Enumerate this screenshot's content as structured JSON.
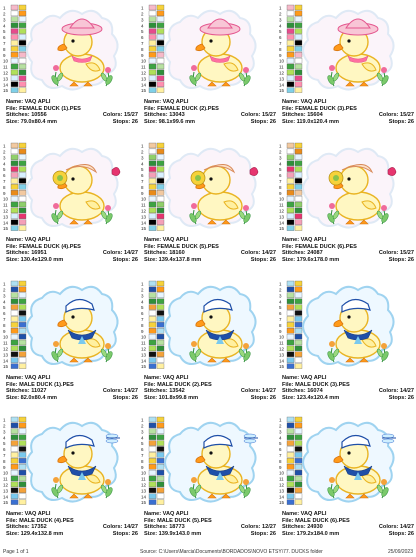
{
  "designs": [
    {
      "name": "VAQ APLI",
      "file": "FEMALE DUCK (1).PES",
      "stitches": "10556",
      "colors": "15/27",
      "size": "79.0x80.4 mm",
      "stops": "26",
      "kind": "female-hat"
    },
    {
      "name": "VAQ APLI",
      "file": "FEMALE DUCK (2).PES",
      "stitches": "13043",
      "colors": "15/27",
      "size": "98.1x99.6 mm",
      "stops": "26",
      "kind": "female-hat"
    },
    {
      "name": "VAQ APLI",
      "file": "FEMALE DUCK (3).PES",
      "stitches": "15604",
      "colors": "15/27",
      "size": "119.0x120.4 mm",
      "stops": "26",
      "kind": "female-hat"
    },
    {
      "name": "VAQ APLI",
      "file": "FEMALE DUCK (4).PES",
      "stitches": "16951",
      "colors": "14/27",
      "size": "130.4x129.0 mm",
      "stops": "26",
      "kind": "female-flower"
    },
    {
      "name": "VAQ APLI",
      "file": "FEMALE DUCK (5).PES",
      "stitches": "18160",
      "colors": "14/27",
      "size": "139.4x137.8 mm",
      "stops": "26",
      "kind": "female-flower"
    },
    {
      "name": "VAQ APLI",
      "file": "FEMALE DUCK (6).PES",
      "stitches": "24087",
      "colors": "15/27",
      "size": "179.6x178.0 mm",
      "stops": "26",
      "kind": "female-flower"
    },
    {
      "name": "VAQ APLI",
      "file": "MALE DUCK (1).PES",
      "stitches": "11027",
      "colors": "14/27",
      "size": "82.0x80.4 mm",
      "stops": "26",
      "kind": "male-sailor"
    },
    {
      "name": "VAQ APLI",
      "file": "MALE DUCK (2).PES",
      "stitches": "13542",
      "colors": "14/27",
      "size": "101.8x99.8 mm",
      "stops": "26",
      "kind": "male-sailor"
    },
    {
      "name": "VAQ APLI",
      "file": "MALE DUCK (3).PES",
      "stitches": "16074",
      "colors": "14/27",
      "size": "123.4x120.4 mm",
      "stops": "26",
      "kind": "male-sailor"
    },
    {
      "name": "VAQ APLI",
      "file": "MALE DUCK (4).PES",
      "stitches": "17352",
      "colors": "14/27",
      "size": "129.4x132.8 mm",
      "stops": "26",
      "kind": "male-dragonfly"
    },
    {
      "name": "VAQ APLI",
      "file": "MALE DUCK (5).PES",
      "stitches": "18773",
      "colors": "12/27",
      "size": "139.9x143.0 mm",
      "stops": "26",
      "kind": "male-dragonfly"
    },
    {
      "name": "VAQ APLI",
      "file": "MALE DUCK (6).PES",
      "stitches": "24930",
      "colors": "14/27",
      "size": "179.2x184.0 mm",
      "stops": "26",
      "kind": "male-dragonfly"
    }
  ],
  "labels": {
    "name": "Name:",
    "file": "File:",
    "stitches": "Stitches:",
    "colors": "Colors:",
    "size": "Size:",
    "stops": "Stops:"
  },
  "footer": {
    "page": "Page 1 of 1",
    "source": "Source: C:\\Users\\Marcia\\Documents\\BORDADOS\\NOVO ETSY\\77. DUCKS folder",
    "date": "25/09/2023"
  },
  "thread_numbers": [
    "1",
    "2",
    "3",
    "4",
    "5",
    "6",
    "7",
    "8",
    "9",
    "10",
    "11",
    "12",
    "13",
    "14",
    "15"
  ],
  "palette": {
    "female_hat": [
      "#f6b9c9",
      "#ffffff",
      "#b7e1a1",
      "#2f8f3a",
      "#e64b8c",
      "#ff8fb0",
      "#fff0a0",
      "#f6d23a",
      "#ff9a1a",
      "#e7f5ff",
      "#3da342",
      "#b0e05a",
      "#d8f0ff",
      "#000000",
      "#7fd0e8"
    ],
    "female_flower": [
      "#f2c9a0",
      "#ffffff",
      "#8fcf6a",
      "#2f8f3a",
      "#e6356f",
      "#f4a0b8",
      "#fff0a0",
      "#f6d23a",
      "#e98b1a",
      "#e7f5ff",
      "#3da342",
      "#b0e05a",
      "#d8f0ff",
      "#000000",
      "#7fd0e8"
    ],
    "male": [
      "#aee0f2",
      "#1f4fa8",
      "#b7e1a1",
      "#2f8f3a",
      "#f4a23a",
      "#ffffff",
      "#fff0a0",
      "#f6d23a",
      "#ff9a1a",
      "#e7f5ff",
      "#3da342",
      "#b0e05a",
      "#111111",
      "#79c9ee",
      "#3a6fd0"
    ]
  }
}
